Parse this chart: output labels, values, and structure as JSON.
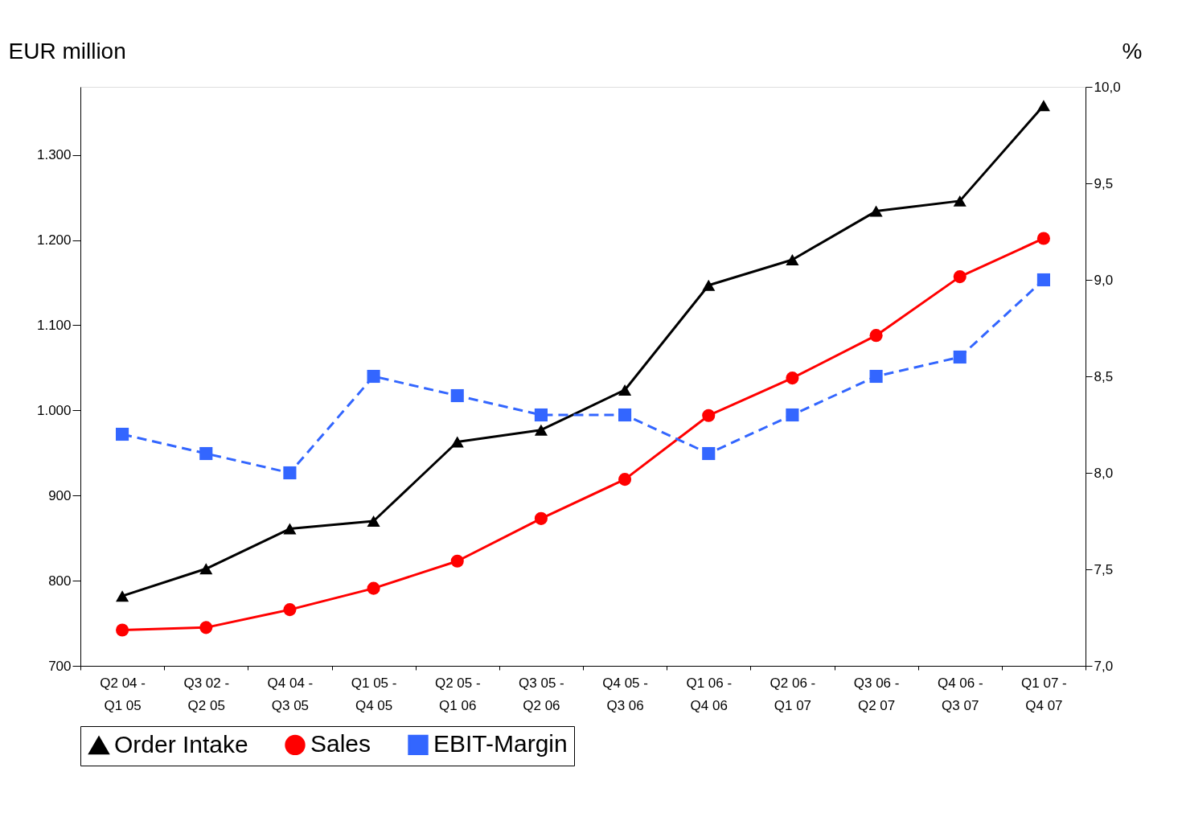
{
  "chart_data": {
    "type": "line",
    "ylabel": "EUR million",
    "y2label": "%",
    "categories": [
      "Q2 04 -\nQ1 05",
      "Q3 02 -\nQ2 05",
      "Q4 04 -\nQ3 05",
      "Q1 05 -\nQ4 05",
      "Q2 05 -\nQ1 06",
      "Q3 05 -\nQ2 06",
      "Q4 05 -\nQ3 06",
      "Q1 06 -\nQ4 06",
      "Q2 06 -\nQ1 07",
      "Q3 06 -\nQ2 07",
      "Q4 06 -\nQ3 07",
      "Q1 07 -\nQ4 07"
    ],
    "series": [
      {
        "name": "Order Intake",
        "color": "#000000",
        "marker": "triangle",
        "line_style": "solid",
        "values": [
          782,
          814,
          861,
          870,
          963,
          977,
          1024,
          1147,
          1177,
          1234,
          1246,
          1358
        ]
      },
      {
        "name": "Sales",
        "color": "#ff0000",
        "marker": "circle",
        "line_style": "solid",
        "values": [
          742,
          745,
          766,
          791,
          823,
          873,
          919,
          994,
          1038,
          1088,
          1157,
          1202
        ]
      },
      {
        "name": "EBIT-Margin",
        "color": "#3366ff",
        "marker": "square",
        "line_style": "dashed",
        "axis": "y2",
        "values": [
          8.2,
          8.1,
          8.0,
          8.5,
          8.4,
          8.3,
          8.3,
          8.1,
          8.3,
          8.5,
          8.6,
          9.0
        ]
      }
    ],
    "ylim": [
      700,
      1380
    ],
    "yticks": [
      700,
      800,
      900,
      {
        "value": 1000,
        "label": "1.000"
      },
      {
        "value": 1100,
        "label": "1.100"
      },
      {
        "value": 1200,
        "label": "1.200"
      },
      {
        "value": 1300,
        "label": "1.300"
      }
    ],
    "y2lim": [
      7.0,
      10.0
    ],
    "y2ticks": [
      {
        "value": 7.0,
        "label": "7,0"
      },
      {
        "value": 7.5,
        "label": "7,5"
      },
      {
        "value": 8.0,
        "label": "8,0"
      },
      {
        "value": 8.5,
        "label": "8,5"
      },
      {
        "value": 9.0,
        "label": "9,0"
      },
      {
        "value": 9.5,
        "label": "9,5"
      },
      {
        "value": 10.0,
        "label": "10,0"
      }
    ],
    "grid": false,
    "legend": "bottom"
  }
}
